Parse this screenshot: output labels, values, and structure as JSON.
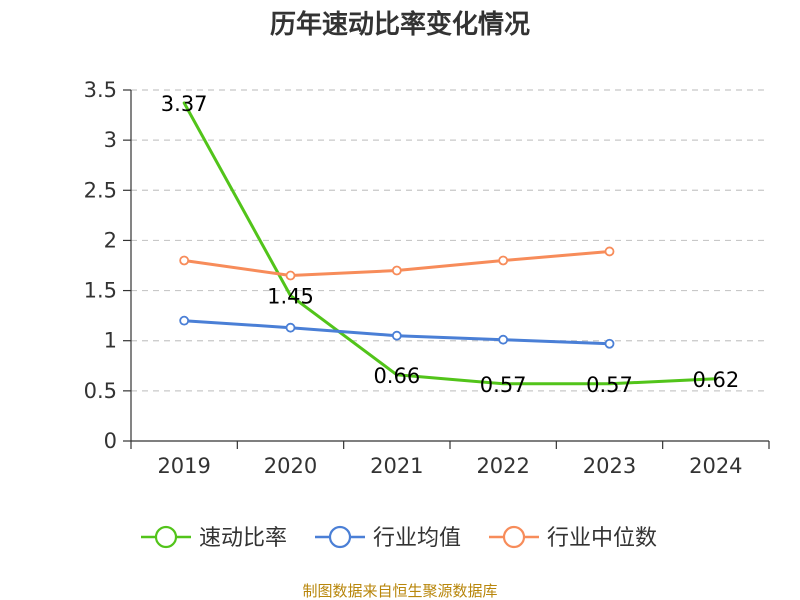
{
  "chart_data": {
    "type": "line",
    "title": "历年速动比率变化情况",
    "categories": [
      "2019",
      "2020",
      "2021",
      "2022",
      "2023",
      "2024"
    ],
    "ylim": [
      0,
      3.5
    ],
    "yticks": [
      "0",
      "0.5",
      "1",
      "1.5",
      "2",
      "2.5",
      "3",
      "3.5"
    ],
    "ytick_values": [
      0,
      0.5,
      1,
      1.5,
      2,
      2.5,
      3,
      3.5
    ],
    "grid": true,
    "legend_position": "bottom",
    "series": [
      {
        "name": "速动比率",
        "color": "#52c41a",
        "values": [
          3.37,
          1.45,
          0.66,
          0.57,
          0.57,
          0.62
        ],
        "labels": [
          "3.37",
          "1.45",
          "0.66",
          "0.57",
          "0.57",
          "0.62"
        ],
        "show_labels": true,
        "show_markers": false
      },
      {
        "name": "行业均值",
        "color": "#4a7fd6",
        "values": [
          1.2,
          1.13,
          1.05,
          1.01,
          0.97,
          null
        ],
        "show_labels": false,
        "show_markers": true
      },
      {
        "name": "行业中位数",
        "color": "#f78c5a",
        "values": [
          1.8,
          1.65,
          1.7,
          1.8,
          1.89,
          null
        ],
        "show_labels": false,
        "show_markers": true
      }
    ],
    "source": "制图数据来自恒生聚源数据库"
  }
}
